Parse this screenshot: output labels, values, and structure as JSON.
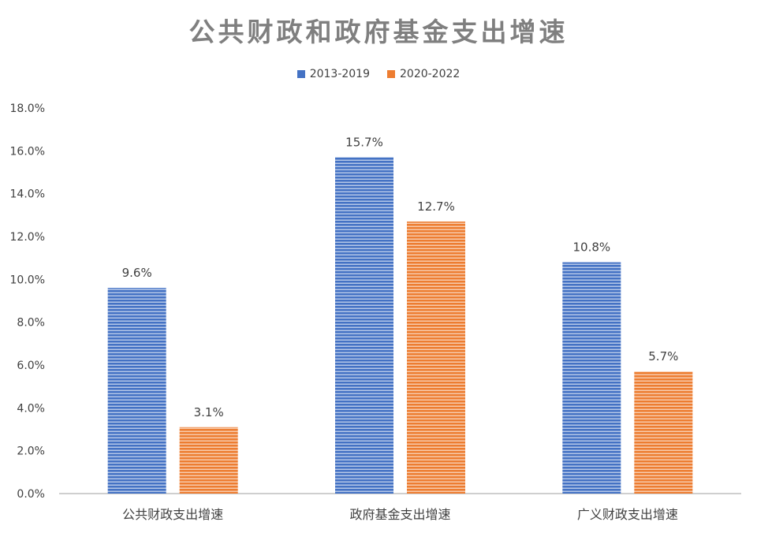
{
  "chart_data": {
    "type": "bar",
    "title": "公共财政和政府基金支出增速",
    "categories": [
      "公共财政支出增速",
      "政府基金支出增速",
      "广义财政支出增速"
    ],
    "series": [
      {
        "name": "2013-2019",
        "values": [
          9.6,
          15.7,
          10.8
        ],
        "labels": [
          "9.6%",
          "15.7%",
          "10.8%"
        ],
        "color": "#4472c4"
      },
      {
        "name": "2020-2022",
        "values": [
          3.1,
          12.7,
          5.7
        ],
        "labels": [
          "3.1%",
          "12.7%",
          "5.7%"
        ],
        "color": "#ed7d31"
      }
    ],
    "ylim": [
      0,
      18
    ],
    "yticks": [
      "0.0%",
      "2.0%",
      "4.0%",
      "6.0%",
      "8.0%",
      "10.0%",
      "12.0%",
      "14.0%",
      "16.0%",
      "18.0%"
    ],
    "legend_position": "top-center",
    "grid": false,
    "bar_pattern": "horizontal-stripes"
  }
}
